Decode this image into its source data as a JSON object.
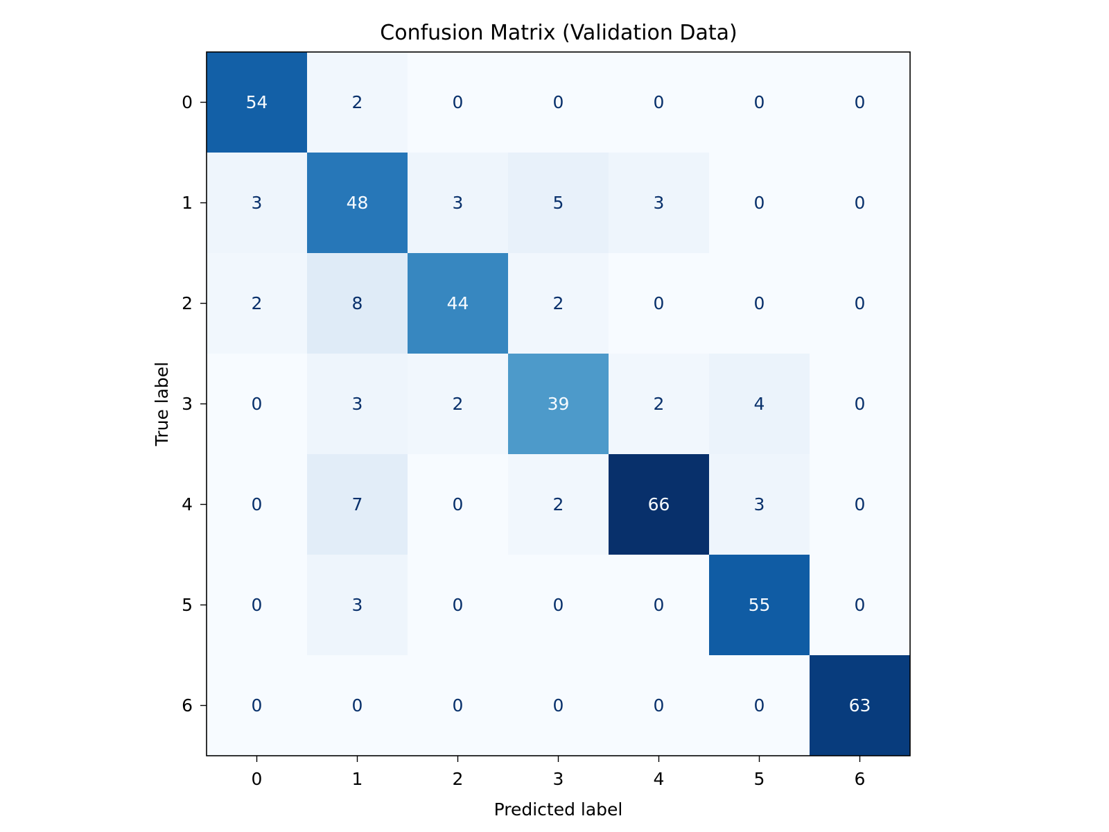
{
  "chart_data": {
    "type": "heatmap",
    "title": "Confusion Matrix (Validation Data)",
    "xlabel": "Predicted label",
    "ylabel": "True label",
    "x_categories": [
      "0",
      "1",
      "2",
      "3",
      "4",
      "5",
      "6"
    ],
    "y_categories": [
      "0",
      "1",
      "2",
      "3",
      "4",
      "5",
      "6"
    ],
    "values": [
      [
        54,
        2,
        0,
        0,
        0,
        0,
        0
      ],
      [
        3,
        48,
        3,
        5,
        3,
        0,
        0
      ],
      [
        2,
        8,
        44,
        2,
        0,
        0,
        0
      ],
      [
        0,
        3,
        2,
        39,
        2,
        4,
        0
      ],
      [
        0,
        7,
        0,
        2,
        66,
        3,
        0
      ],
      [
        0,
        3,
        0,
        0,
        0,
        55,
        0
      ],
      [
        0,
        0,
        0,
        0,
        0,
        0,
        63
      ]
    ],
    "colormap": "Blues",
    "color_range": [
      0,
      66
    ],
    "grid": false,
    "colorbar": false
  }
}
